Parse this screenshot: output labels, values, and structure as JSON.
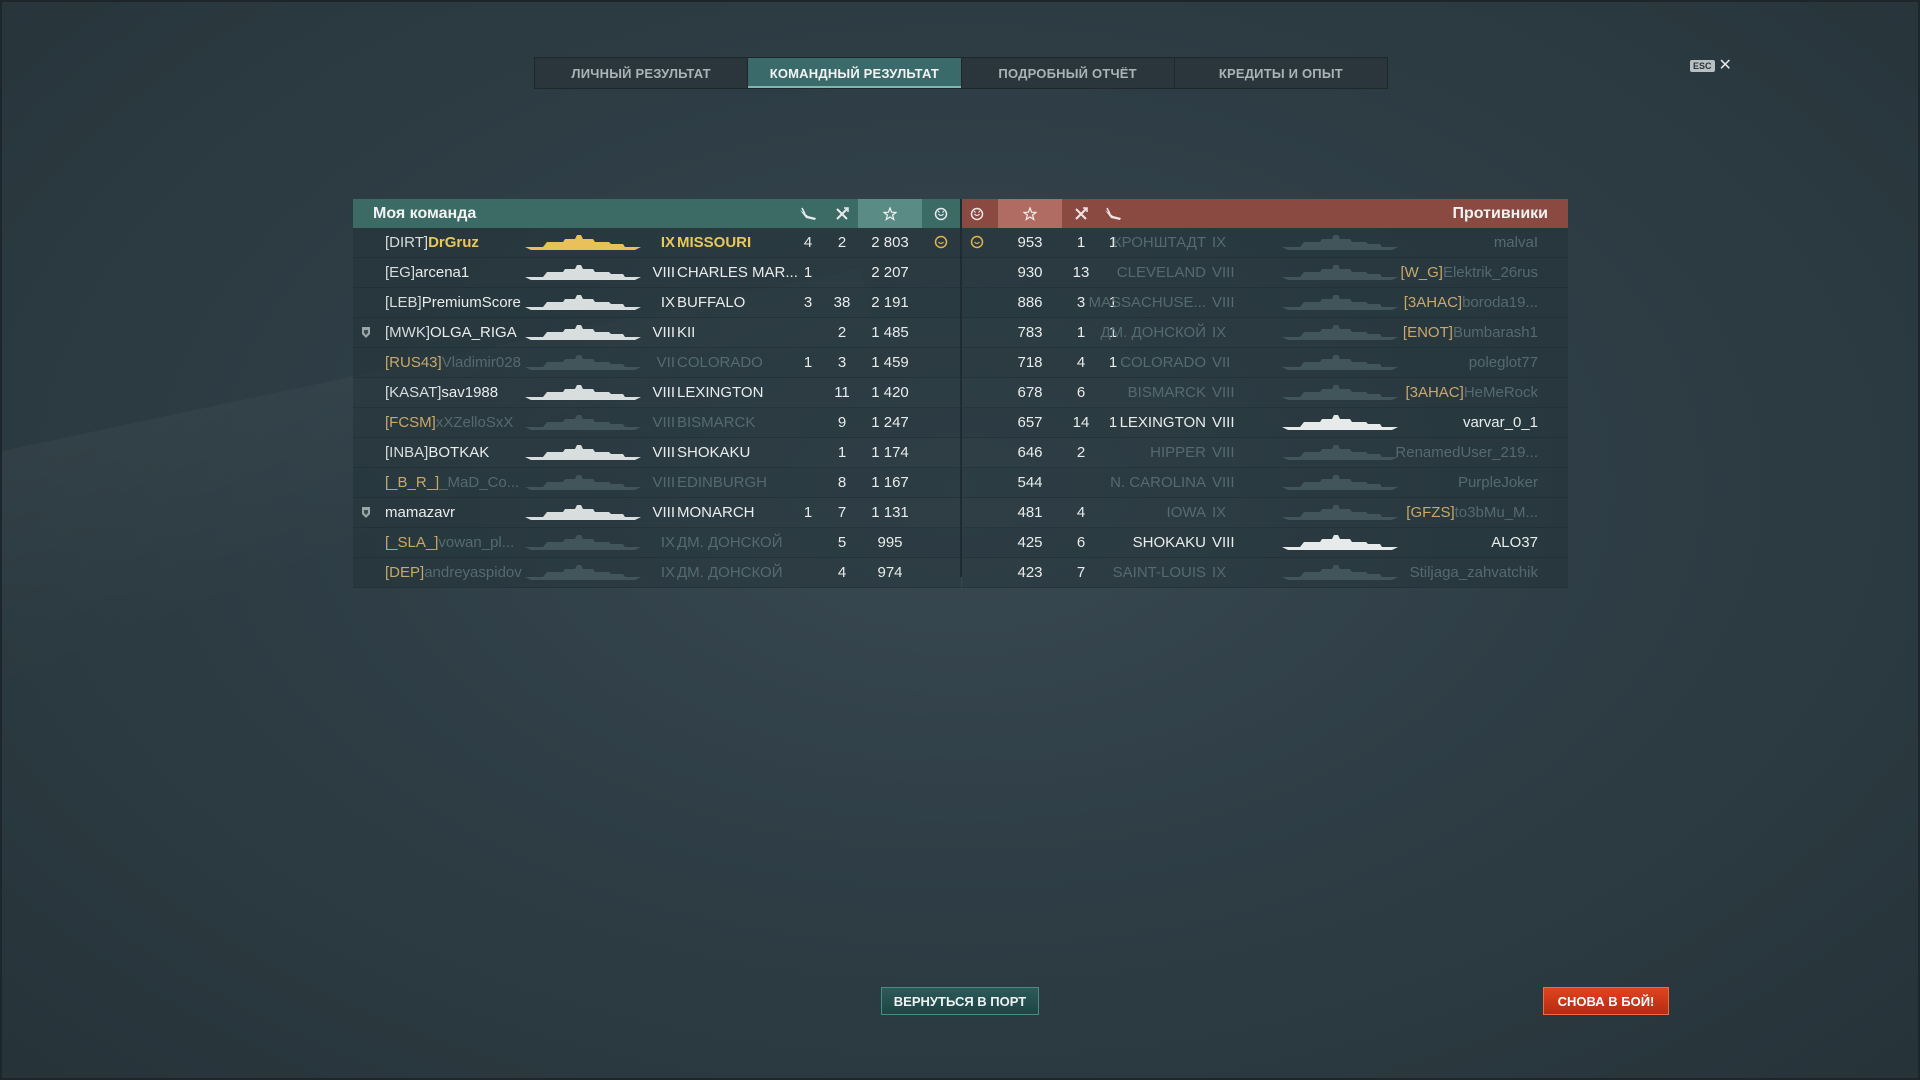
{
  "tabs": [
    {
      "label": "ЛИЧНЫЙ РЕЗУЛЬТАТ",
      "active": false
    },
    {
      "label": "КОМАНДНЫЙ РЕЗУЛЬТАТ",
      "active": true
    },
    {
      "label": "ПОДРОБНЫЙ ОТЧЁТ",
      "active": false
    },
    {
      "label": "КРЕДИТЫ И ОПЫТ",
      "active": false
    }
  ],
  "esc": {
    "key": "ESC",
    "close": "✕"
  },
  "my_team": {
    "title": "Моя команда",
    "rows": [
      {
        "clan": "[DIRT]",
        "player": "DrGruz",
        "tier": "IX",
        "ship": "MISSOURI",
        "planes": "4",
        "kills": "2",
        "xp": "2 803",
        "status": "self",
        "alive": true,
        "award": "",
        "smile": true
      },
      {
        "clan": "[EG]",
        "player": "arcena1",
        "tier": "VIII",
        "ship": "CHARLES MAR...",
        "planes": "1",
        "kills": "",
        "xp": "2 207",
        "status": "alive",
        "award": ""
      },
      {
        "clan": "[LEB]",
        "player": "PremiumScore",
        "tier": "IX",
        "ship": "BUFFALO",
        "planes": "3",
        "kills": "38",
        "xp": "2 191",
        "status": "alive",
        "award": ""
      },
      {
        "clan": "[MWK]",
        "player": "OLGA_RIGA",
        "tier": "VIII",
        "ship": "KII",
        "planes": "",
        "kills": "2",
        "xp": "1 485",
        "status": "alive",
        "award": "medal"
      },
      {
        "clan": "[RUS43]",
        "player": "Vladimir028",
        "tier": "VII",
        "ship": "COLORADO",
        "planes": "1",
        "kills": "3",
        "xp": "1 459",
        "status": "dead",
        "award": ""
      },
      {
        "clan": "[KASAT]",
        "player": "sav1988",
        "tier": "VIII",
        "ship": "LEXINGTON",
        "planes": "",
        "kills": "11",
        "xp": "1 420",
        "status": "alive",
        "award": ""
      },
      {
        "clan": "[FCSM]",
        "player": "xXZelloSxX",
        "tier": "VIII",
        "ship": "BISMARCK",
        "planes": "",
        "kills": "9",
        "xp": "1 247",
        "status": "dead",
        "award": ""
      },
      {
        "clan": "[INBA]",
        "player": "BOTKAK",
        "tier": "VIII",
        "ship": "SHOKAKU",
        "planes": "",
        "kills": "1",
        "xp": "1 174",
        "status": "alive",
        "award": ""
      },
      {
        "clan": "[_B_R_]",
        "player": "_MaD_Co...",
        "tier": "VIII",
        "ship": "EDINBURGH",
        "planes": "",
        "kills": "8",
        "xp": "1 167",
        "status": "dead",
        "award": ""
      },
      {
        "clan": "",
        "player": "mamazavr",
        "tier": "VIII",
        "ship": "MONARCH",
        "planes": "1",
        "kills": "7",
        "xp": "1 131",
        "status": "alive",
        "award": "medal"
      },
      {
        "clan": "[_SLA_]",
        "player": "vowan_pl...",
        "tier": "IX",
        "ship": "ДМ. ДОНСКОЙ",
        "planes": "",
        "kills": "5",
        "xp": "995",
        "status": "dead",
        "award": ""
      },
      {
        "clan": "[DEP]",
        "player": "andreyaspidov",
        "tier": "IX",
        "ship": "ДМ. ДОНСКОЙ",
        "planes": "",
        "kills": "4",
        "xp": "974",
        "status": "dead",
        "award": ""
      }
    ]
  },
  "enemy_team": {
    "title": "Противники",
    "rows": [
      {
        "xp": "953",
        "kills": "1",
        "planes": "1",
        "ship": "КРОНШТАДТ",
        "tier": "IX",
        "clan": "",
        "player": "malvaI",
        "status": "dead",
        "smile": true
      },
      {
        "xp": "930",
        "kills": "13",
        "planes": "",
        "ship": "CLEVELAND",
        "tier": "VIII",
        "clan": "[W_G]",
        "player": "Elektrik_26rus",
        "status": "dead"
      },
      {
        "xp": "886",
        "kills": "3",
        "planes": "1",
        "ship": "MASSACHUSE...",
        "tier": "VIII",
        "clan": "[3AHAC]",
        "player": "boroda19...",
        "status": "dead"
      },
      {
        "xp": "783",
        "kills": "1",
        "planes": "1",
        "ship": "ДМ. ДОНСКОЙ",
        "tier": "IX",
        "clan": "[ENOT]",
        "player": "Bumbarash1",
        "status": "dead"
      },
      {
        "xp": "718",
        "kills": "4",
        "planes": "1",
        "ship": "COLORADO",
        "tier": "VII",
        "clan": "",
        "player": "poleglot77",
        "status": "dead"
      },
      {
        "xp": "678",
        "kills": "6",
        "planes": "",
        "ship": "BISMARCK",
        "tier": "VIII",
        "clan": "[3AHAC]",
        "player": "HeMeRock",
        "status": "dead"
      },
      {
        "xp": "657",
        "kills": "14",
        "planes": "1",
        "ship": "LEXINGTON",
        "tier": "VIII",
        "clan": "",
        "player": "varvar_0_1",
        "status": "alive"
      },
      {
        "xp": "646",
        "kills": "2",
        "planes": "",
        "ship": "HIPPER",
        "tier": "VIII",
        "clan": "",
        "player": "RenamedUser_219...",
        "status": "dead"
      },
      {
        "xp": "544",
        "kills": "",
        "planes": "",
        "ship": "N. CAROLINA",
        "tier": "VIII",
        "clan": "",
        "player": "PurpleJoker",
        "status": "dead"
      },
      {
        "xp": "481",
        "kills": "4",
        "planes": "",
        "ship": "IOWA",
        "tier": "IX",
        "clan": "[GFZS]",
        "player": "to3bMu_M...",
        "status": "dead"
      },
      {
        "xp": "425",
        "kills": "6",
        "planes": "",
        "ship": "SHOKAKU",
        "tier": "VIII",
        "clan": "",
        "player": "ALO37",
        "status": "alive"
      },
      {
        "xp": "423",
        "kills": "7",
        "planes": "",
        "ship": "SAINT-LOUIS",
        "tier": "IX",
        "clan": "",
        "player": "Stiljaga_zahvatchik",
        "status": "dead"
      }
    ]
  },
  "buttons": {
    "return_port": "ВЕРНУТЬСЯ В ПОРТ",
    "battle_again": "СНОВА В БОЙ!"
  },
  "colors": {
    "my_team_header": "#3c6a65",
    "enemy_header": "#8a4a42",
    "self_highlight": "#eac759",
    "battle_button": "#d43a18"
  }
}
